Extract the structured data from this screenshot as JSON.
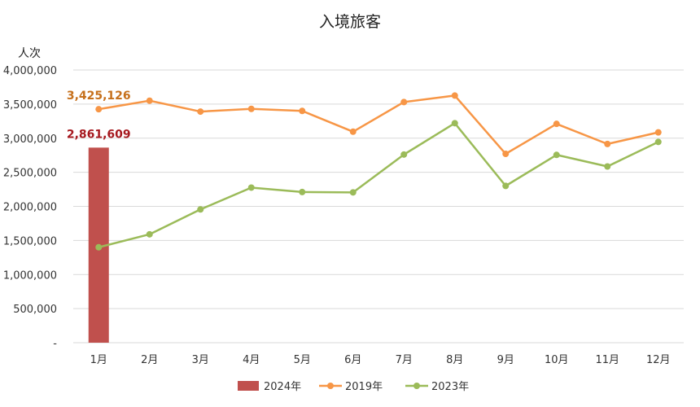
{
  "chart_data": {
    "type": "bar+line",
    "title": "入境旅客",
    "ylabel": "人次",
    "xlabel": "",
    "ylim": [
      0,
      4000000
    ],
    "y_ticks": [
      {
        "value": 0,
        "label": "-"
      },
      {
        "value": 500000,
        "label": "500,000"
      },
      {
        "value": 1000000,
        "label": "1,000,000"
      },
      {
        "value": 1500000,
        "label": "1,500,000"
      },
      {
        "value": 2000000,
        "label": "2,000,000"
      },
      {
        "value": 2500000,
        "label": "2,500,000"
      },
      {
        "value": 3000000,
        "label": "3,000,000"
      },
      {
        "value": 3500000,
        "label": "3,500,000"
      },
      {
        "value": 4000000,
        "label": "4,000,000"
      }
    ],
    "grid": true,
    "legend": "bottom-center",
    "categories": [
      "1月",
      "2月",
      "3月",
      "4月",
      "5月",
      "6月",
      "7月",
      "8月",
      "9月",
      "10月",
      "11月",
      "12月"
    ],
    "series": [
      {
        "name": "2024年",
        "kind": "bar",
        "color": "#c0504d",
        "values": [
          2861609,
          null,
          null,
          null,
          null,
          null,
          null,
          null,
          null,
          null,
          null,
          null
        ],
        "data_labels": [
          {
            "index": 0,
            "text": "2,861,609",
            "color": "#a6191f"
          }
        ]
      },
      {
        "name": "2019年",
        "kind": "line",
        "color": "#f79646",
        "values": [
          3425126,
          3550000,
          3390000,
          3430000,
          3400000,
          3095000,
          3530000,
          3625000,
          2770000,
          3210000,
          2915000,
          3085000
        ],
        "data_labels": [
          {
            "index": 0,
            "text": "3,425,126",
            "color": "#c6701b"
          }
        ]
      },
      {
        "name": "2023年",
        "kind": "line",
        "color": "#9bbb59",
        "values": [
          1400000,
          1590000,
          1955000,
          2275000,
          2210000,
          2205000,
          2760000,
          3220000,
          2300000,
          2755000,
          2585000,
          2945000
        ],
        "data_labels": []
      }
    ]
  }
}
